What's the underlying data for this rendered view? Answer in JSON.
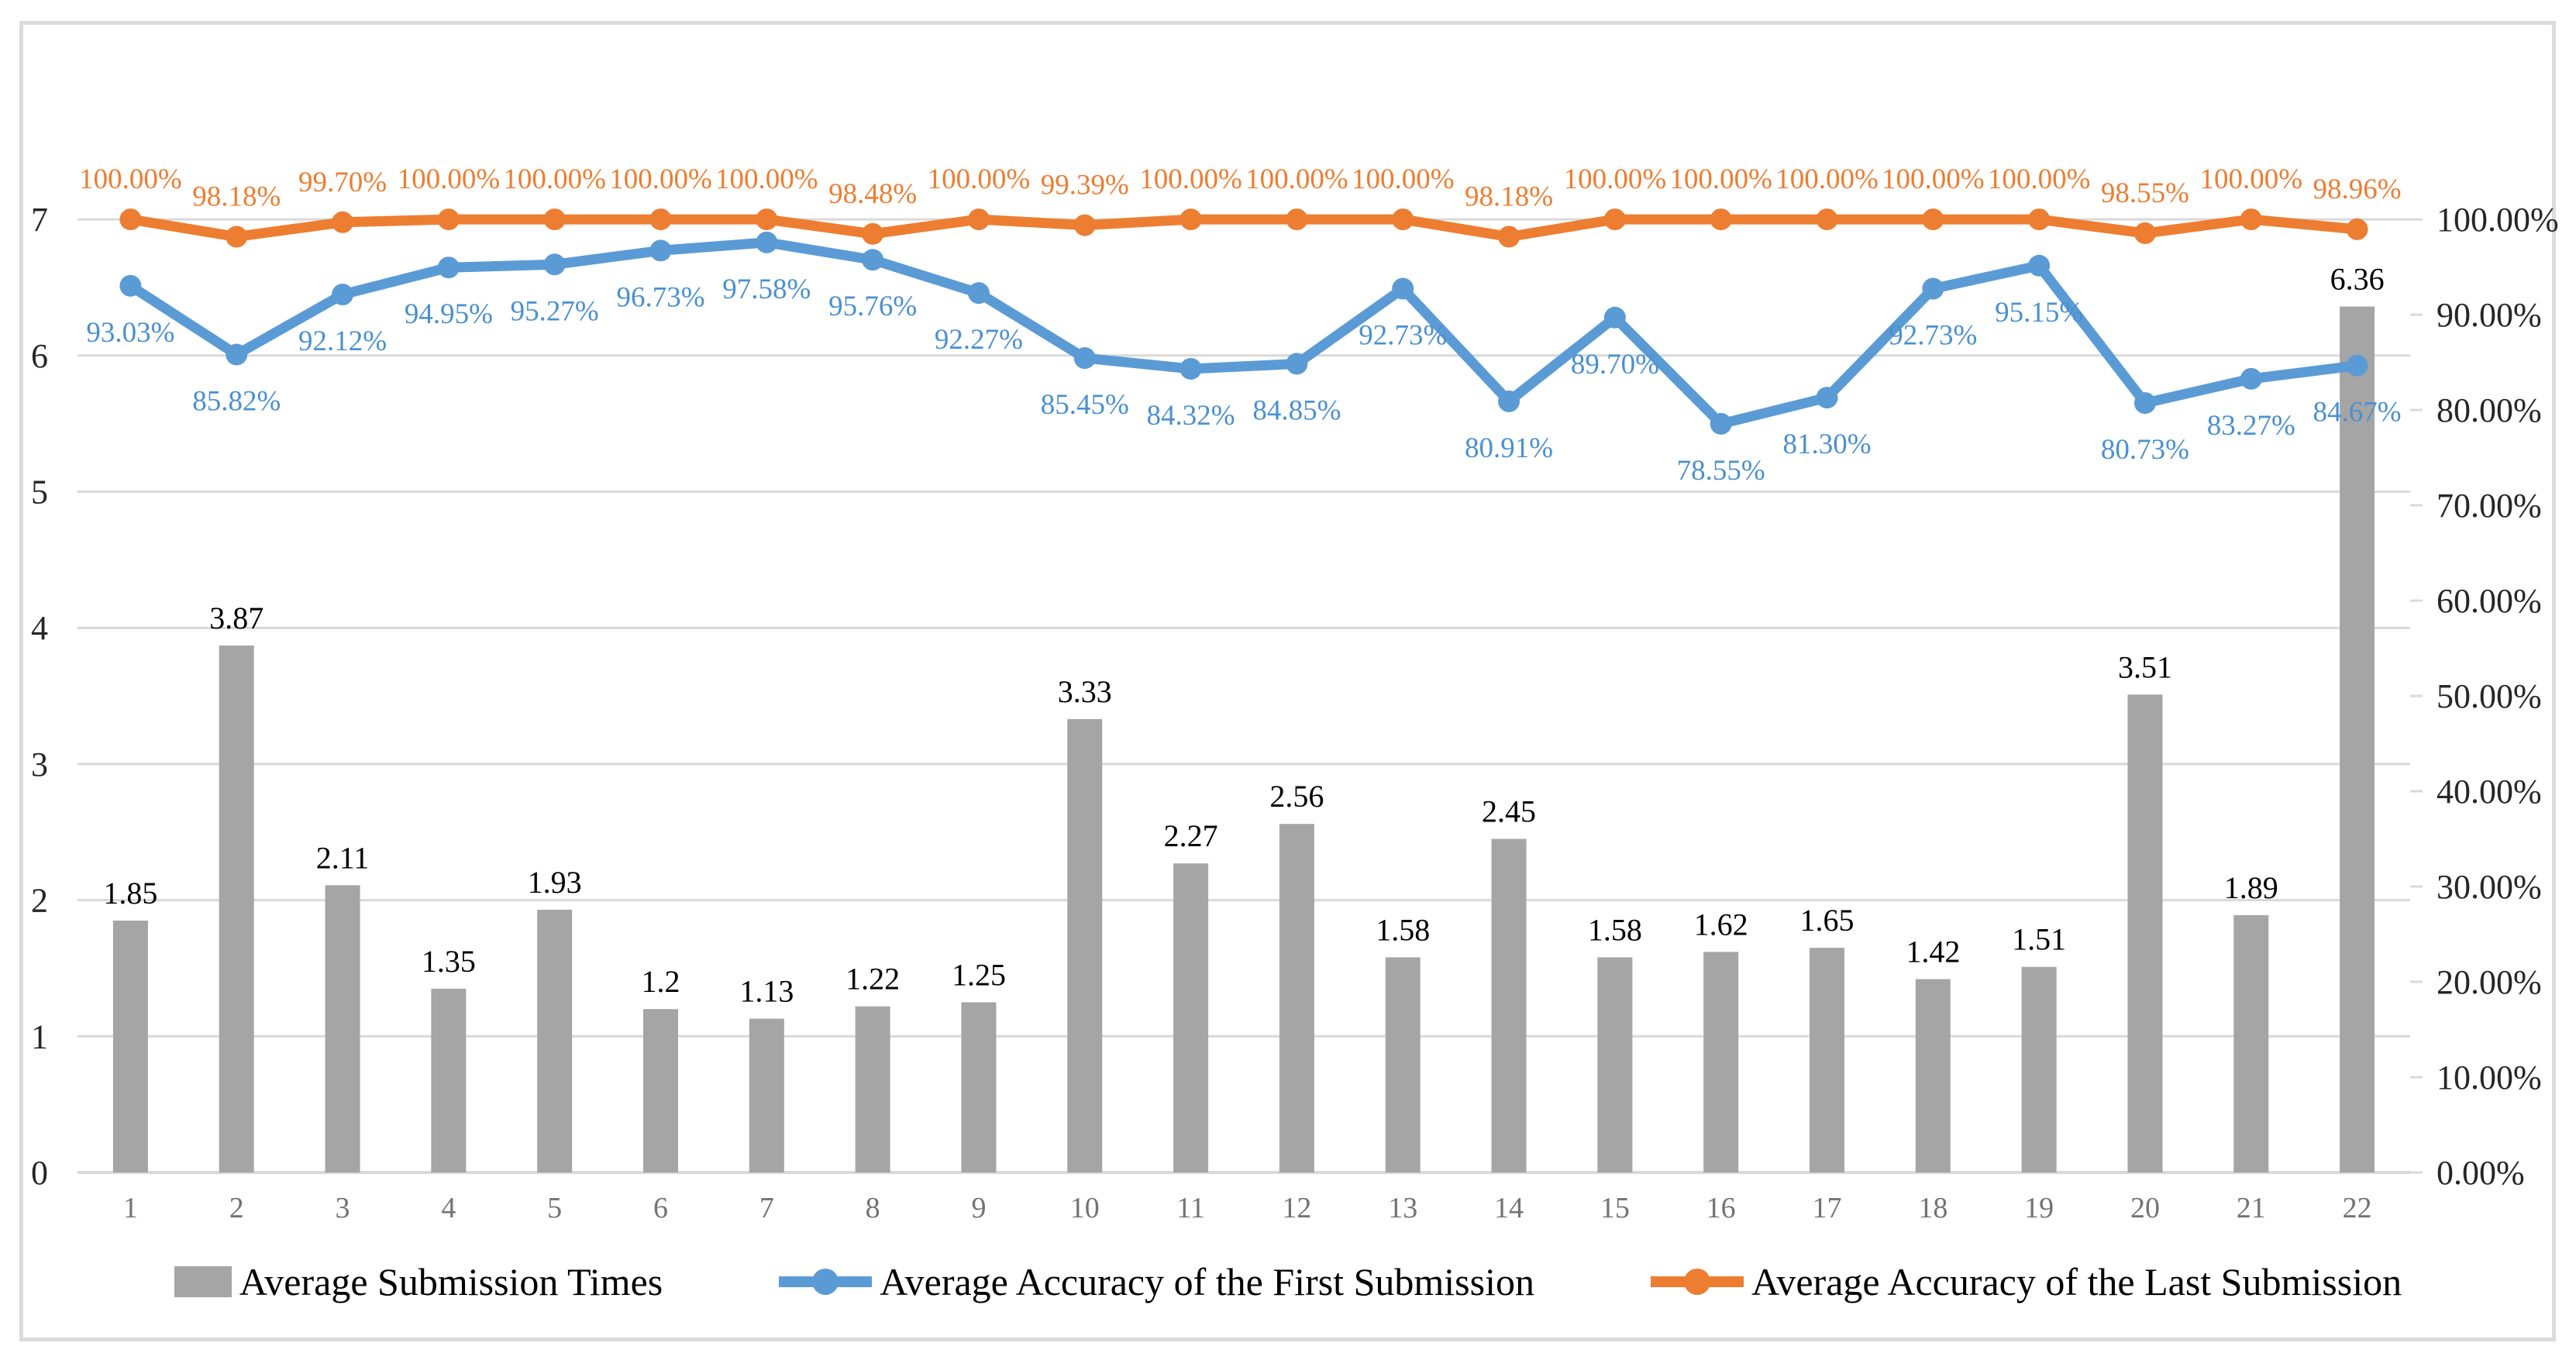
{
  "figure": {
    "background": "#FFFFFF",
    "border_color": "#DCDCDC"
  },
  "chart_data": {
    "type": "combo-bar-line",
    "title": "",
    "grid": true,
    "legend_position": "bottom",
    "categories": [
      "1",
      "2",
      "3",
      "4",
      "5",
      "6",
      "7",
      "8",
      "9",
      "10",
      "11",
      "12",
      "13",
      "14",
      "15",
      "16",
      "17",
      "18",
      "19",
      "20",
      "21",
      "22"
    ],
    "left_axis": {
      "min": 0,
      "max": 7,
      "ticks": [
        "0",
        "1",
        "2",
        "3",
        "4",
        "5",
        "6",
        "7"
      ]
    },
    "right_axis": {
      "min_pct": 0,
      "max_pct": 100,
      "ticks": [
        "100.00%",
        "90.00%",
        "80.00%",
        "70.00%",
        "60.00%",
        "50.00%",
        "40.00%",
        "30.00%",
        "20.00%",
        "10.00%",
        "0.00%"
      ]
    },
    "tick_colors": {
      "left_axis": "#262626",
      "right_axis": "#262626",
      "x_axis": "#737373"
    },
    "gridline_color": "#D9D9D9",
    "series": [
      {
        "name": "Average Submission Times",
        "type": "bar",
        "axis": "left",
        "color": "#A5A5A5",
        "label_color": "#000000",
        "values": [
          1.85,
          3.87,
          2.11,
          1.35,
          1.93,
          1.2,
          1.13,
          1.22,
          1.25,
          3.33,
          2.27,
          2.56,
          1.58,
          2.45,
          1.58,
          1.62,
          1.65,
          1.42,
          1.51,
          3.51,
          1.89,
          6.36
        ],
        "labels": [
          "1.85",
          "3.87",
          "2.11",
          "1.35",
          "1.93",
          "1.2",
          "1.13",
          "1.22",
          "1.25",
          "3.33",
          "2.27",
          "2.56",
          "1.58",
          "2.45",
          "1.58",
          "1.62",
          "1.65",
          "1.42",
          "1.51",
          "3.51",
          "1.89",
          "6.36"
        ]
      },
      {
        "name": "Average Accuracy of the First Submission",
        "type": "line",
        "axis": "right",
        "color": "#5B9BD5",
        "label_color": "#4A90D0",
        "values_pct": [
          93.03,
          85.82,
          92.12,
          94.95,
          95.27,
          96.73,
          97.58,
          95.76,
          92.27,
          85.45,
          84.32,
          84.85,
          92.73,
          80.91,
          89.7,
          78.55,
          81.3,
          92.73,
          95.15,
          80.73,
          83.27,
          84.67
        ],
        "labels": [
          "93.03%",
          "85.82%",
          "92.12%",
          "94.95%",
          "95.27%",
          "96.73%",
          "97.58%",
          "95.76%",
          "92.27%",
          "85.45%",
          "84.32%",
          "84.85%",
          "92.73%",
          "80.91%",
          "89.70%",
          "78.55%",
          "81.30%",
          "92.73%",
          "95.15%",
          "80.73%",
          "83.27%",
          "84.67%"
        ]
      },
      {
        "name": "Average Accuracy of the Last Submission",
        "type": "line",
        "axis": "right",
        "color": "#ED7D31",
        "label_color": "#ED7D31",
        "values_pct": [
          100.0,
          98.18,
          99.7,
          100.0,
          100.0,
          100.0,
          100.0,
          98.48,
          100.0,
          99.39,
          100.0,
          100.0,
          100.0,
          98.18,
          100.0,
          100.0,
          100.0,
          100.0,
          100.0,
          98.55,
          100.0,
          98.96
        ],
        "labels": [
          "100.00%",
          "98.18%",
          "99.70%",
          "100.00%",
          "100.00%",
          "100.00%",
          "100.00%",
          "98.48%",
          "100.00%",
          "99.39%",
          "100.00%",
          "100.00%",
          "100.00%",
          "98.18%",
          "100.00%",
          "100.00%",
          "100.00%",
          "100.00%",
          "100.00%",
          "98.55%",
          "100.00%",
          "98.96%"
        ]
      }
    ]
  }
}
